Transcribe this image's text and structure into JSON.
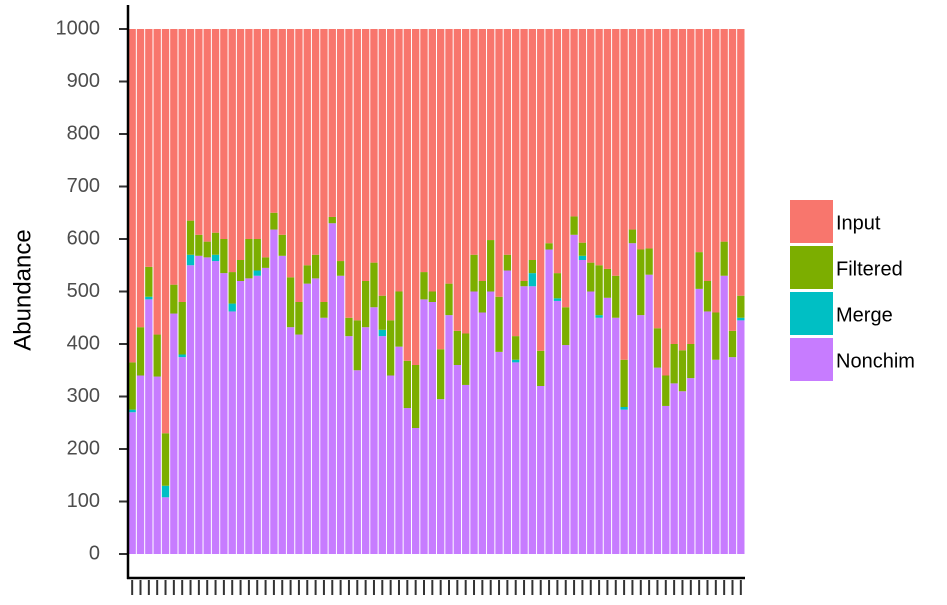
{
  "chart_data": {
    "type": "stacked_bar",
    "y_label": "Abundance",
    "categories": [
      null,
      null,
      null,
      null,
      null,
      null,
      null,
      null,
      null,
      null,
      null,
      null,
      null,
      null,
      null,
      null,
      null,
      null,
      null,
      null,
      null,
      null,
      null,
      null,
      null,
      null,
      null,
      null,
      null,
      null,
      null,
      null,
      null,
      null,
      null,
      null,
      null,
      null,
      null,
      null,
      null,
      null,
      null,
      null,
      null,
      null,
      null,
      null,
      null,
      null,
      null,
      null,
      null,
      null,
      null,
      null,
      null,
      null,
      null,
      null,
      null,
      null,
      null,
      null,
      null,
      null,
      null,
      null,
      null,
      null,
      null,
      null,
      null,
      null
    ],
    "series": [
      {
        "name": "Nonchim",
        "color": "#C77CFF",
        "values": [
          270,
          340,
          485,
          338,
          108,
          458,
          375,
          550,
          568,
          565,
          558,
          535,
          462,
          520,
          525,
          530,
          545,
          618,
          568,
          432,
          418,
          515,
          525,
          450,
          630,
          530,
          415,
          350,
          432,
          470,
          415,
          340,
          395,
          278,
          240,
          485,
          480,
          295,
          455,
          360,
          322,
          500,
          460,
          500,
          385,
          540,
          365,
          510,
          510,
          320,
          580,
          482,
          398,
          608,
          560,
          500,
          450,
          488,
          450,
          275,
          592,
          455,
          532,
          355,
          282,
          325,
          310,
          335,
          505,
          462,
          370,
          530,
          375,
          445
        ]
      },
      {
        "name": "Merge",
        "color": "#00BFC4",
        "values": [
          5,
          0,
          5,
          0,
          22,
          0,
          5,
          20,
          0,
          0,
          12,
          0,
          15,
          0,
          0,
          10,
          0,
          0,
          0,
          0,
          0,
          0,
          0,
          0,
          0,
          0,
          0,
          0,
          0,
          0,
          12,
          0,
          0,
          0,
          0,
          0,
          0,
          0,
          0,
          0,
          0,
          0,
          0,
          0,
          0,
          0,
          5,
          0,
          25,
          0,
          0,
          5,
          0,
          0,
          8,
          0,
          5,
          0,
          0,
          5,
          0,
          0,
          0,
          0,
          0,
          0,
          0,
          0,
          0,
          0,
          0,
          0,
          0,
          5
        ]
      },
      {
        "name": "Filtered",
        "color": "#7CAE00",
        "values": [
          90,
          92,
          57,
          80,
          100,
          55,
          100,
          65,
          40,
          30,
          42,
          65,
          60,
          40,
          75,
          60,
          20,
          32,
          40,
          95,
          62,
          35,
          45,
          30,
          12,
          28,
          35,
          95,
          88,
          85,
          65,
          105,
          105,
          90,
          120,
          52,
          20,
          95,
          60,
          65,
          98,
          70,
          60,
          98,
          105,
          30,
          45,
          10,
          25,
          67,
          12,
          48,
          72,
          35,
          25,
          55,
          95,
          55,
          80,
          90,
          26,
          125,
          50,
          75,
          58,
          75,
          78,
          65,
          70,
          58,
          90,
          65,
          50,
          42
        ]
      },
      {
        "name": "Input",
        "color": "#F8766D",
        "values": [
          635,
          568,
          453,
          582,
          770,
          487,
          520,
          365,
          392,
          405,
          388,
          400,
          463,
          440,
          400,
          400,
          435,
          350,
          392,
          473,
          520,
          450,
          430,
          520,
          358,
          442,
          550,
          555,
          480,
          445,
          508,
          555,
          500,
          632,
          640,
          463,
          500,
          610,
          485,
          575,
          580,
          430,
          480,
          402,
          510,
          430,
          585,
          480,
          440,
          613,
          408,
          465,
          530,
          357,
          407,
          445,
          450,
          457,
          470,
          630,
          382,
          420,
          418,
          570,
          660,
          600,
          612,
          600,
          425,
          480,
          540,
          405,
          575,
          508
        ]
      }
    ],
    "ylim": [
      0,
      1000
    ],
    "yticks": [
      0,
      100,
      200,
      300,
      400,
      500,
      600,
      700,
      800,
      900,
      1000
    ]
  }
}
